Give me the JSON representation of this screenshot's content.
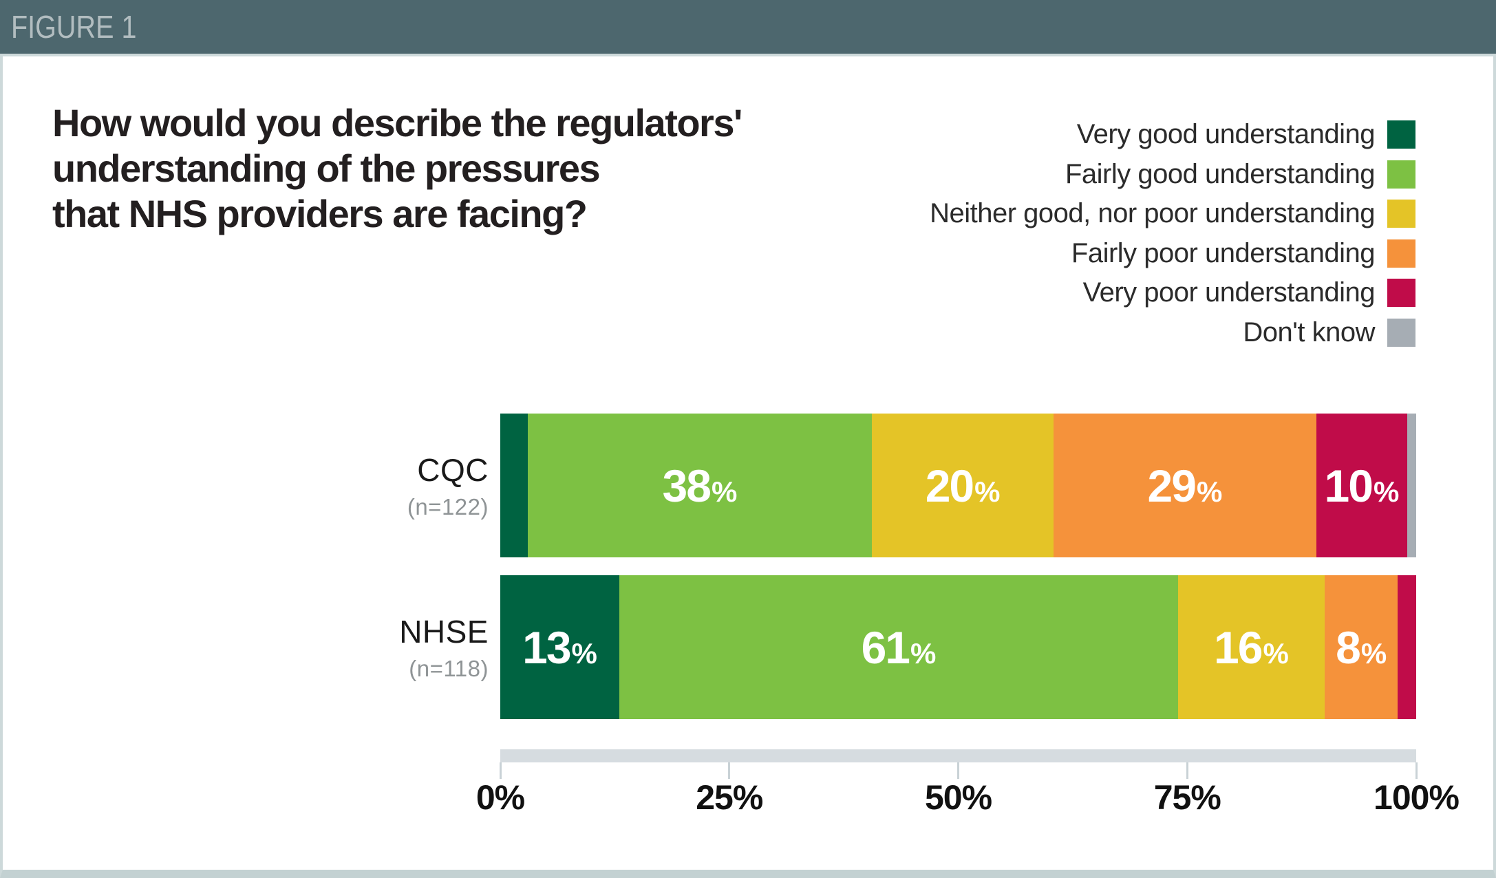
{
  "figure_tag": "FIGURE 1",
  "title_lines": [
    "How would you describe the regulators'",
    "understanding of the pressures",
    "that NHS providers are facing?"
  ],
  "colors": {
    "header_bg": "#4d676e",
    "header_text": "#b2bdc0",
    "panel_border": "#cdd9da",
    "bottom_strip": "#c3d1d2",
    "very_good": "#006341",
    "fairly_good": "#7dc143",
    "neither": "#e4c427",
    "fairly_poor": "#f5923b",
    "very_poor": "#c00c49",
    "dont_know": "#a6adb4",
    "axis_track": "#d6dce0",
    "bar_label_text": "#ffffff",
    "n_label_text": "#8f9496"
  },
  "legend": {
    "position": "top-right",
    "items": [
      {
        "label": "Very good understanding",
        "color": "#006341"
      },
      {
        "label": "Fairly good understanding",
        "color": "#7dc143"
      },
      {
        "label": "Neither good, nor poor understanding",
        "color": "#e4c427"
      },
      {
        "label": "Fairly poor understanding",
        "color": "#f5923b"
      },
      {
        "label": "Very poor understanding",
        "color": "#c00c49"
      },
      {
        "label": "Don't know",
        "color": "#a6adb4"
      }
    ]
  },
  "chart_data": {
    "type": "bar",
    "subtype": "stacked-horizontal",
    "unit": "%",
    "categories": [
      "CQC",
      "NHSE"
    ],
    "category_sublabels": [
      "(n=122)",
      "(n=118)"
    ],
    "series": [
      {
        "name": "Very good understanding",
        "color": "#006341",
        "values": [
          3,
          13
        ],
        "labels": [
          "",
          "13%"
        ]
      },
      {
        "name": "Fairly good understanding",
        "color": "#7dc143",
        "values": [
          38,
          61
        ],
        "labels": [
          "38%",
          "61%"
        ]
      },
      {
        "name": "Neither good, nor poor understanding",
        "color": "#e4c427",
        "values": [
          20,
          16
        ],
        "labels": [
          "20%",
          "16%"
        ]
      },
      {
        "name": "Fairly poor understanding",
        "color": "#f5923b",
        "values": [
          29,
          8
        ],
        "labels": [
          "29%",
          "8%"
        ]
      },
      {
        "name": "Very poor understanding",
        "color": "#c00c49",
        "values": [
          10,
          2
        ],
        "labels": [
          "10%",
          ""
        ]
      },
      {
        "name": "Don't know",
        "color": "#a6adb4",
        "values": [
          1,
          0
        ],
        "labels": [
          "",
          ""
        ]
      }
    ],
    "xlabel": "",
    "ylabel": "",
    "xlim": [
      0,
      100
    ],
    "x_axis_ticks": [
      "0%",
      "25%",
      "50%",
      "75%",
      "100%"
    ],
    "grid": false,
    "legend_position": "top-right"
  }
}
